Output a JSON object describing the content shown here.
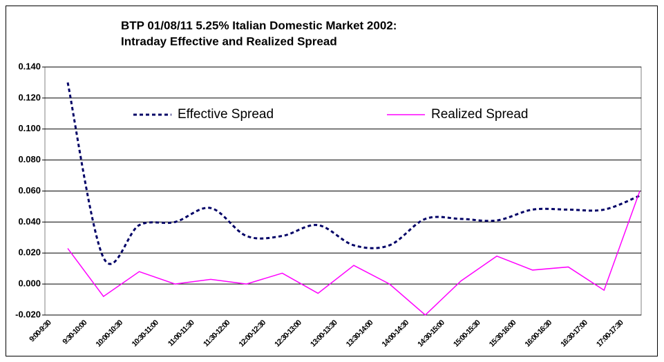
{
  "chart_data": {
    "type": "line",
    "title": [
      "BTP 01/08/11 5.25% Italian Domestic Market 2002:",
      "Intraday Effective and Realized Spread"
    ],
    "categories": [
      "9:00-9:30",
      "9:30-10:00",
      "10:00-10:30",
      "10:30-11:00",
      "11:00-11:30",
      "11:30-12:00",
      "12:00-12:30",
      "12:30-13:00",
      "13:00-13:30",
      "13:30-14:00",
      "14:00-14:30",
      "14:30-15:00",
      "15:00-15:30",
      "15:30-16:00",
      "16:00-16:30",
      "16:30-17:00",
      "17:00-17:30"
    ],
    "series": [
      {
        "name": "Effective Spread",
        "color": "#000066",
        "dash": true,
        "smooth": true,
        "values": [
          0.13,
          0.017,
          0.038,
          0.04,
          0.049,
          0.031,
          0.031,
          0.038,
          0.025,
          0.025,
          0.042,
          0.042,
          0.041,
          0.048,
          0.048,
          0.048,
          0.057
        ]
      },
      {
        "name": "Realized Spread",
        "color": "#ff00ff",
        "dash": false,
        "smooth": false,
        "values": [
          0.023,
          -0.008,
          0.008,
          0.0,
          0.003,
          0.0,
          0.007,
          -0.006,
          0.012,
          0.0,
          -0.02,
          0.002,
          0.018,
          0.009,
          0.011,
          -0.004,
          0.06
        ]
      }
    ],
    "ylim": [
      -0.02,
      0.14
    ],
    "yticks": [
      {
        "value": -0.02,
        "label": "-0.020"
      },
      {
        "value": 0,
        "label": "0.000"
      },
      {
        "value": 0.02,
        "label": "0.020"
      },
      {
        "value": 0.04,
        "label": "0.040"
      },
      {
        "value": 0.06,
        "label": "0.060"
      },
      {
        "value": 0.08,
        "label": "0.080"
      },
      {
        "value": 0.1,
        "label": "0.100"
      },
      {
        "value": 0.12,
        "label": "0.120"
      },
      {
        "value": 0.14,
        "label": "0.140"
      }
    ],
    "grid": true,
    "legend": "top"
  }
}
